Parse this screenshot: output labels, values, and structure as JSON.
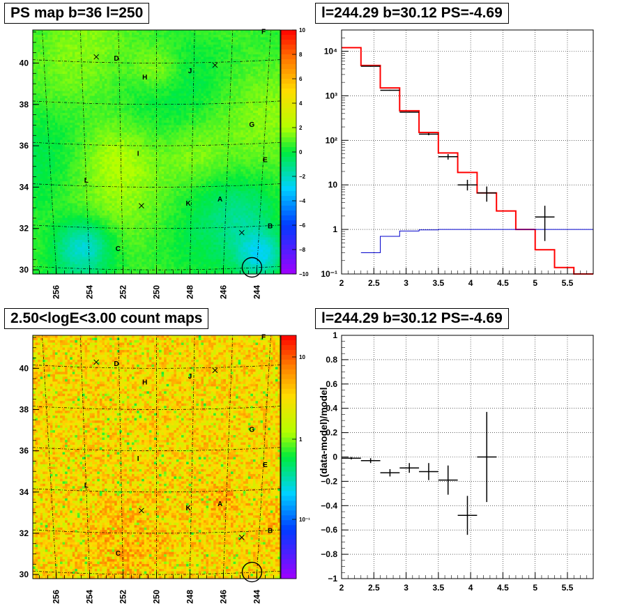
{
  "panels": {
    "ps_map": {
      "title": "PS map b=36 l=250",
      "ytick_labels": [
        "30",
        "32",
        "34",
        "36",
        "38",
        "40"
      ],
      "xtick_labels": [
        "256",
        "254",
        "252",
        "250",
        "248",
        "246",
        "244"
      ],
      "colorbar": {
        "tick_labels": [
          "10",
          "8",
          "6",
          "4",
          "2",
          "0",
          "−2",
          "−4",
          "−6",
          "−8",
          "−10"
        ],
        "range": [
          -10,
          10
        ]
      },
      "markers": [
        {
          "kind": "label",
          "text": "F",
          "l": 243.6,
          "b": 41.5
        },
        {
          "kind": "label",
          "text": "D",
          "l": 252.4,
          "b": 40.2
        },
        {
          "kind": "label",
          "text": "J",
          "l": 248.0,
          "b": 39.6
        },
        {
          "kind": "label",
          "text": "H",
          "l": 250.7,
          "b": 39.3
        },
        {
          "kind": "label",
          "text": "G",
          "l": 244.3,
          "b": 37.0
        },
        {
          "kind": "label",
          "text": "I",
          "l": 251.1,
          "b": 35.6
        },
        {
          "kind": "label",
          "text": "E",
          "l": 243.5,
          "b": 35.3
        },
        {
          "kind": "label",
          "text": "L",
          "l": 254.2,
          "b": 34.3
        },
        {
          "kind": "label",
          "text": "K",
          "l": 248.1,
          "b": 33.2
        },
        {
          "kind": "label",
          "text": "A",
          "l": 246.2,
          "b": 33.4
        },
        {
          "kind": "label",
          "text": "B",
          "l": 243.2,
          "b": 32.1
        },
        {
          "kind": "label",
          "text": "C",
          "l": 252.3,
          "b": 31.0
        },
        {
          "kind": "cross",
          "l": 253.6,
          "b": 40.3
        },
        {
          "kind": "cross",
          "l": 246.5,
          "b": 39.9
        },
        {
          "kind": "cross",
          "l": 250.9,
          "b": 33.1
        },
        {
          "kind": "cross",
          "l": 244.9,
          "b": 31.8
        },
        {
          "kind": "circle",
          "l": 244.29,
          "b": 30.12
        }
      ]
    },
    "spectrum": {
      "title": "l=244.29 b=30.12 PS=-4.69",
      "ytick_labels": [
        "10⁻¹",
        "1",
        "10",
        "10²",
        "10³",
        "10⁴"
      ],
      "xtick_labels": [
        "2",
        "2.5",
        "3",
        "3.5",
        "4",
        "4.5",
        "5",
        "5.5"
      ]
    },
    "count_map": {
      "title": "2.50<logE<3.00 count maps",
      "ytick_labels": [
        "30",
        "32",
        "34",
        "36",
        "38",
        "40"
      ],
      "xtick_labels": [
        "256",
        "254",
        "252",
        "250",
        "248",
        "246",
        "244"
      ],
      "colorbar": {
        "tick_labels": [
          "10",
          "1",
          "10⁻¹"
        ]
      }
    },
    "residual": {
      "title": "l=244.29 b=30.12 PS=-4.69",
      "ylabel": "(data-model)/model",
      "ytick_labels": [
        "−1",
        "−0.8",
        "−0.6",
        "−0.4",
        "−0.2",
        "0",
        "0.2",
        "0.4",
        "0.6",
        "0.8",
        "1"
      ],
      "xtick_labels": [
        "2",
        "2.5",
        "3",
        "3.5",
        "4",
        "4.5",
        "5",
        "5.5"
      ]
    }
  },
  "chart_data": [
    {
      "type": "heatmap",
      "id": "ps_map",
      "title": "PS map b=36 l=250",
      "xlim": [
        257.4,
        242.6
      ],
      "ylim": [
        29.8,
        41.6
      ],
      "zlim": [
        -10,
        10
      ],
      "grid": true
    },
    {
      "type": "line",
      "id": "spectrum",
      "title": "l=244.29 b=30.12 PS=-4.69",
      "log_y": true,
      "xlim": [
        2,
        5.9
      ],
      "ylim": [
        0.1,
        30000
      ],
      "grid": true,
      "series": [
        {
          "kind": "step",
          "color": "#ff0000",
          "edges": [
            2.0,
            2.3,
            2.6,
            2.9,
            3.2,
            3.5,
            3.8,
            4.1,
            4.4,
            4.7,
            5.0,
            5.3,
            5.6,
            5.9
          ],
          "values": [
            12000,
            4800,
            1500,
            460,
            150,
            52,
            19,
            6.6,
            2.6,
            1.0,
            0.35,
            0.14,
            0.1
          ]
        },
        {
          "kind": "step",
          "color": "#0000cc",
          "edges": [
            2.3,
            2.6,
            2.9,
            3.2,
            3.5,
            3.8,
            4.1,
            4.4,
            4.7,
            5.0,
            5.3,
            5.6,
            5.9
          ],
          "values": [
            0.3,
            0.7,
            0.92,
            0.98,
            1.0,
            1.0,
            1.0,
            1.0,
            1.0,
            1.0,
            1.0,
            1.0
          ]
        },
        {
          "kind": "points",
          "color": "#000000",
          "x": [
            2.45,
            2.75,
            3.05,
            3.35,
            3.65,
            3.95,
            4.25,
            5.15
          ],
          "xerr": [
            0.15,
            0.15,
            0.15,
            0.15,
            0.15,
            0.15,
            0.15,
            0.15
          ],
          "y": [
            4600,
            1330,
            430,
            138,
            43,
            10,
            6.6,
            1.9
          ],
          "ylow": [
            4500,
            1300,
            420,
            130,
            37,
            7.5,
            4.2,
            0.55
          ],
          "yhigh": [
            4700,
            1360,
            440,
            146,
            49,
            13,
            9.2,
            3.4
          ]
        }
      ]
    },
    {
      "type": "heatmap",
      "id": "count_map",
      "title": "2.50<logE<3.00 count maps",
      "xlim": [
        257.4,
        242.6
      ],
      "ylim": [
        29.8,
        41.6
      ],
      "zlog": true,
      "zlim": [
        0.02,
        20
      ],
      "grid": true
    },
    {
      "type": "scatter",
      "id": "residual",
      "title": "l=244.29 b=30.12 PS=-4.69",
      "ylabel": "(data-model)/model",
      "xlim": [
        2,
        5.9
      ],
      "ylim": [
        -1,
        1
      ],
      "grid": true,
      "series": [
        {
          "kind": "points",
          "color": "#000000",
          "x": [
            2.15,
            2.45,
            2.75,
            3.05,
            3.35,
            3.65,
            3.95,
            4.25
          ],
          "xerr": [
            0.15,
            0.15,
            0.15,
            0.15,
            0.15,
            0.15,
            0.15,
            0.15
          ],
          "y": [
            -0.01,
            -0.03,
            -0.13,
            -0.09,
            -0.12,
            -0.19,
            -0.48,
            0.0
          ],
          "yerr": [
            0.01,
            0.02,
            0.03,
            0.04,
            0.07,
            0.12,
            0.16,
            0.37
          ]
        }
      ]
    }
  ]
}
